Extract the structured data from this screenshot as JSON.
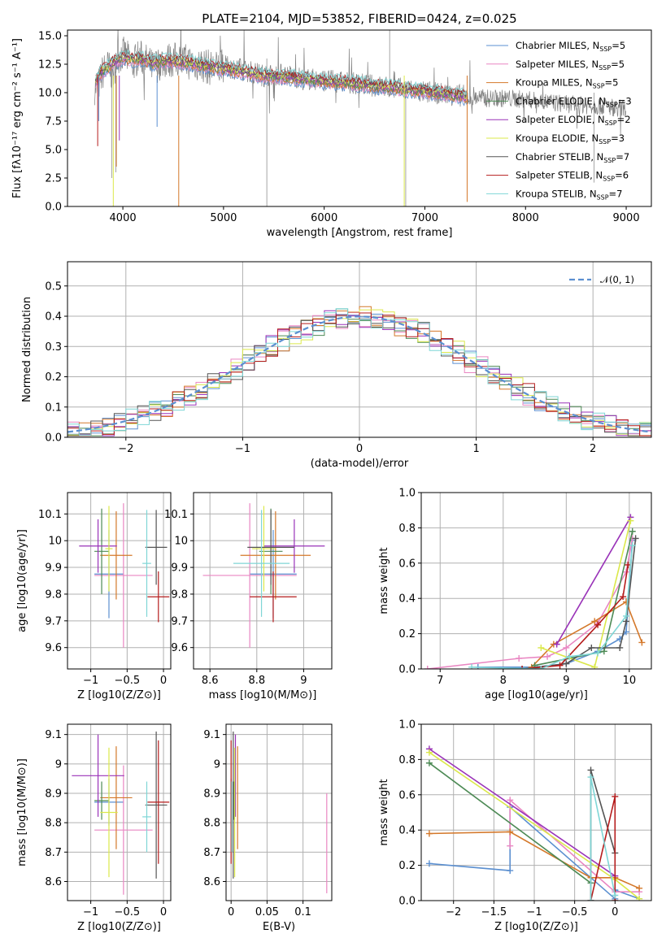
{
  "figure": {
    "title": "PLATE=2104, MJD=53852, FIBERID=0424, z=0.025"
  },
  "colors": {
    "Chabrier MILES": "#5b8fd0",
    "Salpeter MILES": "#e986c2",
    "Kroupa MILES": "#d4782a",
    "Chabrier ELODIE": "#4d8a55",
    "Salpeter ELODIE": "#9932b8",
    "Kroupa ELODIE": "#dbe84a",
    "Chabrier STELIB": "#555555",
    "Salpeter STELIB": "#b51c1c",
    "Kroupa STELIB": "#7fd6d6",
    "reference": "#5b8fd0"
  },
  "chart_data": [
    {
      "id": "spectrum",
      "type": "line",
      "title": "PLATE=2104, MJD=53852, FIBERID=0424, z=0.025",
      "xlabel": "wavelength [Angstrom, rest frame]",
      "ylabel": "Flux [fλ10⁻¹⁷ erg cm⁻² s⁻¹ A⁻¹]",
      "xlim": [
        3450,
        9250
      ],
      "ylim": [
        0,
        15.5
      ],
      "xticks": [
        4000,
        5000,
        6000,
        7000,
        8000,
        9000
      ],
      "yticks": [
        0.0,
        2.5,
        5.0,
        7.5,
        10.0,
        12.5,
        15.0
      ],
      "grid": false,
      "legend_position": "top-right",
      "legend": [
        "Chabrier MILES, N_SSP=5",
        "Salpeter MILES, N_SSP=5",
        "Kroupa MILES, N_SSP=5",
        "Chabrier ELODIE, N_SSP=3",
        "Salpeter ELODIE, N_SSP=2",
        "Kroupa ELODIE, N_SSP=3",
        "Chabrier STELIB, N_SSP=7",
        "Salpeter STELIB, N_SSP=6",
        "Kroupa STELIB, N_SSP=7"
      ],
      "data_series": {
        "name": "data",
        "x": [
          3750,
          3800,
          3850,
          3900,
          3950,
          4000,
          4050,
          4100,
          4150,
          4200,
          4300,
          4400,
          4500,
          4600,
          4700,
          4800,
          4900,
          5000,
          5200,
          5400,
          5600,
          5800,
          6000,
          6200,
          6400,
          6600,
          6800,
          7000,
          7200,
          7400,
          7600,
          7800,
          8000,
          8200,
          8400,
          8600,
          8800,
          9000
        ],
        "y": [
          10.5,
          11.8,
          12.3,
          11.6,
          13.2,
          13.4,
          13.0,
          12.5,
          13.1,
          13.0,
          12.2,
          12.8,
          12.9,
          12.8,
          12.6,
          12.4,
          12.1,
          12.3,
          12.0,
          11.5,
          11.6,
          11.2,
          11.1,
          10.9,
          10.7,
          10.5,
          10.3,
          10.0,
          9.9,
          9.7,
          9.5,
          9.5,
          9.4,
          9.2,
          9.0,
          8.9,
          8.8,
          8.6
        ]
      },
      "model_series": {
        "x": [
          3730,
          3800,
          3900,
          4000,
          4100,
          4200,
          4300,
          4400,
          4600,
          4800,
          5000,
          5200,
          5400,
          5600,
          5800,
          6000,
          6200,
          6400,
          6600,
          6800,
          7000,
          7200,
          7420
        ],
        "y": [
          11.0,
          11.9,
          12.6,
          13.1,
          12.9,
          12.9,
          12.6,
          12.8,
          12.7,
          12.4,
          12.1,
          11.8,
          11.5,
          11.4,
          11.2,
          11.0,
          10.9,
          10.7,
          10.5,
          10.3,
          10.1,
          9.9,
          9.6
        ]
      }
    },
    {
      "id": "residuals",
      "type": "line",
      "xlabel": "(data-model)/error",
      "ylabel": "Normed distribution",
      "xlim": [
        -2.5,
        2.5
      ],
      "ylim": [
        0,
        0.58
      ],
      "xticks": [
        -2,
        -1,
        0,
        1,
        2
      ],
      "yticks": [
        0.0,
        0.1,
        0.2,
        0.3,
        0.4,
        0.5
      ],
      "grid": true,
      "legend_position": "top-right",
      "reference": {
        "name": "𝒩(0, 1)",
        "mean": 0,
        "sigma": 1
      }
    },
    {
      "id": "age-vs-Z",
      "type": "scatter",
      "xlabel": "Z [log10(Z/Z⊙)]",
      "ylabel": "age  [log10(age/yr)]",
      "xlim": [
        -1.32,
        0.1
      ],
      "ylim": [
        9.52,
        10.18
      ],
      "xticks": [
        -1.0,
        -0.5,
        0.0
      ],
      "yticks": [
        9.6,
        9.7,
        9.8,
        9.9,
        10.0,
        10.1
      ],
      "grid": true,
      "points": [
        {
          "model": "Chabrier MILES",
          "x": -0.75,
          "y": 9.875,
          "xerr": 0.2,
          "yerr": 0.165
        },
        {
          "model": "Salpeter MILES",
          "x": -0.55,
          "y": 9.87,
          "xerr": 0.4,
          "yerr": 0.27
        },
        {
          "model": "Kroupa MILES",
          "x": -0.65,
          "y": 9.945,
          "xerr": 0.22,
          "yerr": 0.165
        },
        {
          "model": "Chabrier ELODIE",
          "x": -0.85,
          "y": 9.96,
          "xerr": 0.1,
          "yerr": 0.16
        },
        {
          "model": "Salpeter ELODIE",
          "x": -0.9,
          "y": 9.98,
          "xerr": 0.26,
          "yerr": 0.1
        },
        {
          "model": "Kroupa ELODIE",
          "x": -0.75,
          "y": 9.97,
          "xerr": 0.05,
          "yerr": 0.16
        },
        {
          "model": "Chabrier STELIB",
          "x": -0.1,
          "y": 9.975,
          "xerr": 0.15,
          "yerr": 0.14
        },
        {
          "model": "Salpeter STELIB",
          "x": -0.07,
          "y": 9.79,
          "xerr": 0.15,
          "yerr": 0.095
        },
        {
          "model": "Kroupa STELIB",
          "x": -0.23,
          "y": 9.915,
          "xerr": 0.06,
          "yerr": 0.2
        }
      ]
    },
    {
      "id": "age-vs-mass",
      "type": "scatter",
      "xlabel": "mass [log10(M/M⊙)]",
      "ylabel": "",
      "xlim": [
        8.53,
        9.12
      ],
      "ylim": [
        9.52,
        10.18
      ],
      "xticks": [
        8.6,
        8.8,
        9.0
      ],
      "yticks": [
        9.6,
        9.7,
        9.8,
        9.9,
        10.0,
        10.1
      ],
      "grid": true,
      "points": [
        {
          "model": "Chabrier MILES",
          "x": 8.87,
          "y": 9.875,
          "xerr": 0.1,
          "yerr": 0.165
        },
        {
          "model": "Salpeter MILES",
          "x": 8.77,
          "y": 9.87,
          "xerr": 0.2,
          "yerr": 0.27
        },
        {
          "model": "Kroupa MILES",
          "x": 8.88,
          "y": 9.945,
          "xerr": 0.15,
          "yerr": 0.165
        },
        {
          "model": "Chabrier ELODIE",
          "x": 8.86,
          "y": 9.96,
          "xerr": 0.05,
          "yerr": 0.16
        },
        {
          "model": "Salpeter ELODIE",
          "x": 8.96,
          "y": 9.98,
          "xerr": 0.13,
          "yerr": 0.1
        },
        {
          "model": "Kroupa ELODIE",
          "x": 8.83,
          "y": 9.97,
          "xerr": 0.05,
          "yerr": 0.16
        },
        {
          "model": "Chabrier STELIB",
          "x": 8.86,
          "y": 9.975,
          "xerr": 0.1,
          "yerr": 0.14
        },
        {
          "model": "Salpeter STELIB",
          "x": 8.87,
          "y": 9.79,
          "xerr": 0.1,
          "yerr": 0.095
        },
        {
          "model": "Kroupa STELIB",
          "x": 8.82,
          "y": 9.915,
          "xerr": 0.12,
          "yerr": 0.2
        }
      ]
    },
    {
      "id": "weight-vs-age",
      "type": "line",
      "xlabel": "age  [log10(age/yr)]",
      "ylabel": "mass weight",
      "xlim": [
        6.7,
        10.35
      ],
      "ylim": [
        0,
        1.0
      ],
      "xticks": [
        7,
        8,
        9,
        10
      ],
      "yticks": [
        0.0,
        0.2,
        0.4,
        0.6,
        0.8,
        1.0
      ],
      "grid": true,
      "series": [
        {
          "model": "Chabrier MILES",
          "x": [
            7.6,
            8.5,
            9.0,
            9.5,
            9.85,
            9.95,
            10.05
          ],
          "y": [
            0.01,
            0.01,
            0.03,
            0.1,
            0.17,
            0.21,
            0.73
          ]
        },
        {
          "model": "Salpeter MILES",
          "x": [
            6.8,
            8.25,
            8.7,
            9.0,
            9.5,
            9.95,
            10.05
          ],
          "y": [
            0.0,
            0.06,
            0.07,
            0.12,
            0.26,
            0.55,
            0.74
          ]
        },
        {
          "model": "Kroupa MILES",
          "x": [
            8.45,
            8.8,
            9.45,
            9.95,
            10.2
          ],
          "y": [
            0.01,
            0.14,
            0.27,
            0.38,
            0.15
          ]
        },
        {
          "model": "Chabrier ELODIE",
          "x": [
            8.5,
            9.6,
            10.05
          ],
          "y": [
            0.02,
            0.1,
            0.78
          ]
        },
        {
          "model": "Salpeter ELODIE",
          "x": [
            8.85,
            10.02
          ],
          "y": [
            0.14,
            0.86
          ]
        },
        {
          "model": "Kroupa ELODIE",
          "x": [
            8.6,
            9.45,
            10.02
          ],
          "y": [
            0.12,
            0.01,
            0.84
          ]
        },
        {
          "model": "Chabrier STELIB",
          "x": [
            8.3,
            9.0,
            9.4,
            9.85,
            9.95,
            10.1
          ],
          "y": [
            0.0,
            0.03,
            0.12,
            0.12,
            0.27,
            0.74
          ]
        },
        {
          "model": "Salpeter STELIB",
          "x": [
            8.3,
            8.9,
            9.5,
            9.9,
            9.98
          ],
          "y": [
            0.0,
            0.02,
            0.25,
            0.41,
            0.59
          ]
        },
        {
          "model": "Kroupa STELIB",
          "x": [
            7.5,
            8.6,
            9.05,
            9.5,
            9.95,
            10.05
          ],
          "y": [
            0.01,
            0.0,
            0.07,
            0.09,
            0.3,
            0.7
          ]
        }
      ]
    },
    {
      "id": "mass-vs-Z",
      "type": "scatter",
      "xlabel": "Z [log10(Z/Z⊙)]",
      "ylabel": "mass [log10(M/M⊙)]",
      "xlim": [
        -1.32,
        0.1
      ],
      "ylim": [
        8.535,
        9.135
      ],
      "xticks": [
        -1.0,
        -0.5,
        0.0
      ],
      "yticks": [
        8.6,
        8.7,
        8.8,
        8.9,
        9.0,
        9.1
      ],
      "grid": true,
      "points": [
        {
          "model": "Chabrier MILES",
          "x": -0.75,
          "y": 8.87,
          "xerr": 0.2,
          "yerr": 0.08
        },
        {
          "model": "Salpeter MILES",
          "x": -0.55,
          "y": 8.775,
          "xerr": 0.4,
          "yerr": 0.22
        },
        {
          "model": "Kroupa MILES",
          "x": -0.65,
          "y": 8.885,
          "xerr": 0.22,
          "yerr": 0.175
        },
        {
          "model": "Chabrier ELODIE",
          "x": -0.85,
          "y": 8.875,
          "xerr": 0.1,
          "yerr": 0.065
        },
        {
          "model": "Salpeter ELODIE",
          "x": -0.9,
          "y": 8.96,
          "xerr": 0.36,
          "yerr": 0.14
        },
        {
          "model": "Kroupa ELODIE",
          "x": -0.75,
          "y": 8.835,
          "xerr": 0.12,
          "yerr": 0.22
        },
        {
          "model": "Chabrier STELIB",
          "x": -0.1,
          "y": 8.86,
          "xerr": 0.15,
          "yerr": 0.25
        },
        {
          "model": "Salpeter STELIB",
          "x": -0.07,
          "y": 8.87,
          "xerr": 0.15,
          "yerr": 0.21
        },
        {
          "model": "Kroupa STELIB",
          "x": -0.23,
          "y": 8.82,
          "xerr": 0.06,
          "yerr": 0.12
        }
      ]
    },
    {
      "id": "mass-vs-ebv",
      "type": "scatter",
      "xlabel": "E(B-V)",
      "ylabel": "",
      "xlim": [
        -0.007,
        0.14
      ],
      "ylim": [
        8.535,
        9.135
      ],
      "xticks": [
        0.0,
        0.05,
        0.1
      ],
      "yticks": [
        8.6,
        8.7,
        8.8,
        8.9,
        9.0,
        9.1
      ],
      "grid": true,
      "points": [
        {
          "model": "Chabrier MILES",
          "x": 0.0,
          "y": 8.87,
          "xerr": 0,
          "yerr": 0.08
        },
        {
          "model": "Salpeter MILES",
          "x": 0.133,
          "y": 8.73,
          "xerr": 0,
          "yerr": 0.17
        },
        {
          "model": "Kroupa MILES",
          "x": 0.009,
          "y": 8.885,
          "xerr": 0,
          "yerr": 0.175
        },
        {
          "model": "Chabrier ELODIE",
          "x": 0.004,
          "y": 8.875,
          "xerr": 0,
          "yerr": 0.065
        },
        {
          "model": "Salpeter ELODIE",
          "x": 0.006,
          "y": 8.96,
          "xerr": 0,
          "yerr": 0.14
        },
        {
          "model": "Kroupa ELODIE",
          "x": 0.005,
          "y": 8.835,
          "xerr": 0,
          "yerr": 0.22
        },
        {
          "model": "Chabrier STELIB",
          "x": 0.003,
          "y": 8.86,
          "xerr": 0,
          "yerr": 0.25
        },
        {
          "model": "Salpeter STELIB",
          "x": 0.0,
          "y": 8.87,
          "xerr": 0,
          "yerr": 0.21
        },
        {
          "model": "Kroupa STELIB",
          "x": 0.001,
          "y": 8.82,
          "xerr": 0,
          "yerr": 0.12
        }
      ]
    },
    {
      "id": "weight-vs-Z",
      "type": "line",
      "xlabel": "Z [log10(Z/Z⊙)]",
      "ylabel": "mass weight",
      "xlim": [
        -2.4,
        0.45
      ],
      "ylim": [
        0,
        1.0
      ],
      "xticks": [
        -2.0,
        -1.5,
        -1.0,
        -0.5,
        0.0
      ],
      "yticks": [
        0.0,
        0.2,
        0.4,
        0.6,
        0.8,
        1.0
      ],
      "grid": true,
      "series": [
        {
          "model": "Chabrier MILES",
          "x": [
            -2.3,
            -1.3,
            -1.3,
            0.0,
            0.0,
            0.3
          ],
          "y": [
            0.21,
            0.17,
            0.53,
            0.01,
            0.06,
            0.01
          ]
        },
        {
          "model": "Salpeter MILES",
          "x": [
            -1.3,
            -1.3,
            0.0,
            0.3
          ],
          "y": [
            0.31,
            0.57,
            0.05,
            0.05
          ]
        },
        {
          "model": "Kroupa MILES",
          "x": [
            -2.3,
            -1.3,
            -0.3,
            0.0,
            0.3
          ],
          "y": [
            0.38,
            0.39,
            0.13,
            0.13,
            0.07
          ]
        },
        {
          "model": "Chabrier ELODIE",
          "x": [
            -2.3,
            -0.3
          ],
          "y": [
            0.78,
            0.1
          ]
        },
        {
          "model": "Salpeter ELODIE",
          "x": [
            -2.3,
            0.0
          ],
          "y": [
            0.86,
            0.14
          ]
        },
        {
          "model": "Kroupa ELODIE",
          "x": [
            -2.3,
            0.0,
            0.3
          ],
          "y": [
            0.84,
            0.12,
            0.01
          ]
        },
        {
          "model": "Chabrier STELIB",
          "x": [
            -0.3,
            -0.3,
            0.0
          ],
          "y": [
            0.0,
            0.74,
            0.27
          ]
        },
        {
          "model": "Salpeter STELIB",
          "x": [
            -0.3,
            0.0,
            0.0
          ],
          "y": [
            0.0,
            0.59,
            0.0
          ]
        },
        {
          "model": "Kroupa STELIB",
          "x": [
            -0.3,
            -0.3,
            0.0
          ],
          "y": [
            0.0,
            0.7,
            0.03
          ]
        }
      ]
    }
  ]
}
